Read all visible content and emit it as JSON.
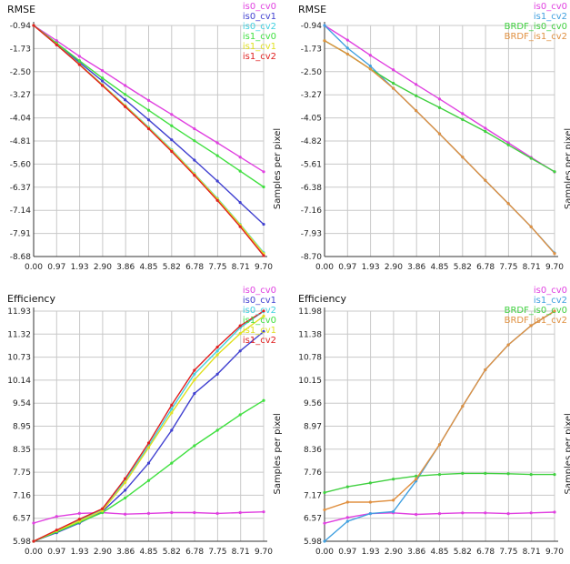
{
  "chart_data": [
    {
      "type": "line",
      "title": "RMSE",
      "xlabel": "",
      "ylabel": "Samples per pixel",
      "x": [
        0.0,
        0.97,
        1.93,
        2.9,
        3.86,
        4.85,
        5.82,
        6.78,
        7.75,
        8.71,
        9.7
      ],
      "x_ticks": [
        "0.00",
        "0.97",
        "1.93",
        "2.90",
        "3.86",
        "4.85",
        "5.82",
        "6.78",
        "7.75",
        "8.71",
        "9.70"
      ],
      "y_ticks": [
        "-0.94",
        "-1.73",
        "-2.50",
        "-3.27",
        "-4.04",
        "-4.81",
        "-5.60",
        "-6.37",
        "-7.14",
        "-7.91",
        "-8.68"
      ],
      "xlim": [
        0.0,
        9.7
      ],
      "ylim": [
        -8.68,
        -0.94
      ],
      "grid": true,
      "legend_position": "top-right",
      "series": [
        {
          "name": "is0_cv0",
          "color": "#e040e0",
          "values": [
            -0.94,
            -1.45,
            -1.97,
            -2.45,
            -2.95,
            -3.45,
            -3.92,
            -4.4,
            -4.87,
            -5.35,
            -5.84
          ]
        },
        {
          "name": "is0_cv1",
          "color": "#4040d0",
          "values": [
            -0.94,
            -1.55,
            -2.17,
            -2.8,
            -3.43,
            -4.1,
            -4.77,
            -5.45,
            -6.15,
            -6.87,
            -7.6
          ]
        },
        {
          "name": "is0_cv2",
          "color": "#40d0e0",
          "values": [
            -0.94,
            -1.58,
            -2.23,
            -2.92,
            -3.62,
            -4.35,
            -5.1,
            -5.9,
            -6.73,
            -7.6,
            -8.55
          ]
        },
        {
          "name": "is1_cv0",
          "color": "#40e040",
          "values": [
            -0.94,
            -1.53,
            -2.12,
            -2.7,
            -3.25,
            -3.78,
            -4.3,
            -4.8,
            -5.3,
            -5.82,
            -6.35
          ]
        },
        {
          "name": "is1_cv1",
          "color": "#e0e020",
          "values": [
            -0.94,
            -1.58,
            -2.24,
            -2.93,
            -3.63,
            -4.37,
            -5.12,
            -5.92,
            -6.75,
            -7.62,
            -8.58
          ]
        },
        {
          "name": "is1_cv2",
          "color": "#e02020",
          "values": [
            -0.94,
            -1.59,
            -2.25,
            -2.95,
            -3.66,
            -4.4,
            -5.16,
            -5.96,
            -6.8,
            -7.68,
            -8.65
          ]
        }
      ]
    },
    {
      "type": "line",
      "title": "RMSE",
      "xlabel": "",
      "ylabel": "Samples per pixel",
      "x": [
        0.0,
        0.97,
        1.93,
        2.9,
        3.86,
        4.85,
        5.82,
        6.78,
        7.75,
        8.71,
        9.7
      ],
      "x_ticks": [
        "0.00",
        "0.97",
        "1.93",
        "2.90",
        "3.86",
        "4.85",
        "5.82",
        "6.78",
        "7.75",
        "8.71",
        "9.70"
      ],
      "y_ticks": [
        "-0.94",
        "-1.73",
        "-2.50",
        "-3.27",
        "-4.05",
        "-4.82",
        "-5.61",
        "-6.38",
        "-7.16",
        "-7.93",
        "-8.70"
      ],
      "xlim": [
        0.0,
        9.7
      ],
      "ylim": [
        -8.7,
        -0.94
      ],
      "grid": true,
      "legend_position": "top-right",
      "series": [
        {
          "name": "is0_cv0",
          "color": "#e040e0",
          "values": [
            -0.94,
            -1.43,
            -1.94,
            -2.43,
            -2.92,
            -3.41,
            -3.9,
            -4.39,
            -4.88,
            -5.37,
            -5.86
          ]
        },
        {
          "name": "is1_cv2",
          "color": "#40a0e0",
          "values": [
            -0.94,
            -1.7,
            -2.3,
            -3.05,
            -3.8,
            -4.58,
            -5.36,
            -6.14,
            -6.92,
            -7.7,
            -8.58
          ]
        },
        {
          "name": "BRDF_is0_cv0",
          "color": "#40d040",
          "values": [
            -1.45,
            -1.9,
            -2.4,
            -2.88,
            -3.3,
            -3.7,
            -4.1,
            -4.5,
            -4.95,
            -5.4,
            -5.85
          ]
        },
        {
          "name": "BRDF_is1_cv2",
          "color": "#e09040",
          "values": [
            -1.45,
            -1.9,
            -2.4,
            -3.05,
            -3.8,
            -4.58,
            -5.36,
            -6.14,
            -6.92,
            -7.7,
            -8.6
          ]
        }
      ]
    },
    {
      "type": "line",
      "title": "Efficiency",
      "xlabel": "",
      "ylabel": "Samples per pixel",
      "x": [
        0.0,
        0.97,
        1.93,
        2.9,
        3.86,
        4.85,
        5.82,
        6.78,
        7.75,
        8.71,
        9.7
      ],
      "x_ticks": [
        "0.00",
        "0.97",
        "1.93",
        "2.90",
        "3.86",
        "4.85",
        "5.82",
        "6.78",
        "7.75",
        "8.71",
        "9.70"
      ],
      "y_ticks": [
        "11.93",
        "11.32",
        "10.73",
        "10.14",
        "9.54",
        "8.95",
        "8.35",
        "7.75",
        "7.16",
        "6.57",
        "5.98"
      ],
      "xlim": [
        0.0,
        9.7
      ],
      "ylim": [
        5.98,
        11.93
      ],
      "grid": true,
      "legend_position": "top-right",
      "series": [
        {
          "name": "is0_cv0",
          "color": "#e040e0",
          "values": [
            6.45,
            6.62,
            6.7,
            6.72,
            6.68,
            6.7,
            6.72,
            6.72,
            6.7,
            6.72,
            6.74
          ]
        },
        {
          "name": "is0_cv1",
          "color": "#4040d0",
          "values": [
            5.98,
            6.2,
            6.45,
            6.75,
            7.3,
            8.0,
            8.85,
            9.8,
            10.3,
            10.9,
            11.4
          ]
        },
        {
          "name": "is0_cv2",
          "color": "#40d0e0",
          "values": [
            5.98,
            6.25,
            6.52,
            6.8,
            7.55,
            8.45,
            9.4,
            10.3,
            10.9,
            11.5,
            11.93
          ]
        },
        {
          "name": "is1_cv0",
          "color": "#40e040",
          "values": [
            5.98,
            6.22,
            6.47,
            6.72,
            7.1,
            7.55,
            8.0,
            8.45,
            8.85,
            9.25,
            9.62
          ]
        },
        {
          "name": "is1_cv1",
          "color": "#e0e020",
          "values": [
            5.98,
            6.25,
            6.5,
            6.77,
            7.5,
            8.4,
            9.3,
            10.15,
            10.8,
            11.35,
            11.8
          ]
        },
        {
          "name": "is1_cv2",
          "color": "#e02020",
          "values": [
            5.98,
            6.27,
            6.55,
            6.82,
            7.6,
            8.52,
            9.5,
            10.4,
            11.0,
            11.55,
            11.93
          ]
        }
      ]
    },
    {
      "type": "line",
      "title": "Efficiency",
      "xlabel": "",
      "ylabel": "Samples per pixel",
      "x": [
        0.0,
        0.97,
        1.93,
        2.9,
        3.86,
        4.85,
        5.82,
        6.78,
        7.75,
        8.71,
        9.7
      ],
      "x_ticks": [
        "0.00",
        "0.97",
        "1.93",
        "2.90",
        "3.86",
        "4.85",
        "5.82",
        "6.78",
        "7.75",
        "8.71",
        "9.70"
      ],
      "y_ticks": [
        "11.98",
        "11.38",
        "10.78",
        "10.15",
        "9.56",
        "8.97",
        "8.36",
        "7.76",
        "7.17",
        "6.57",
        "5.98"
      ],
      "xlim": [
        0.0,
        9.7
      ],
      "ylim": [
        5.98,
        11.98
      ],
      "grid": true,
      "legend_position": "top-right",
      "series": [
        {
          "name": "is0_cv0",
          "color": "#e040e0",
          "values": [
            6.45,
            6.6,
            6.7,
            6.72,
            6.68,
            6.7,
            6.72,
            6.72,
            6.7,
            6.72,
            6.74
          ]
        },
        {
          "name": "is1_cv2",
          "color": "#40a0e0",
          "values": [
            5.98,
            6.5,
            6.7,
            6.75,
            7.55,
            8.5,
            9.5,
            10.45,
            11.1,
            11.6,
            11.98
          ]
        },
        {
          "name": "BRDF_is0_cv0",
          "color": "#40d040",
          "values": [
            7.25,
            7.4,
            7.5,
            7.6,
            7.68,
            7.72,
            7.75,
            7.75,
            7.74,
            7.72,
            7.72
          ]
        },
        {
          "name": "BRDF_is1_cv2",
          "color": "#e09040",
          "values": [
            6.8,
            7.0,
            7.0,
            7.05,
            7.6,
            8.5,
            9.5,
            10.45,
            11.1,
            11.6,
            11.98
          ]
        }
      ]
    }
  ]
}
